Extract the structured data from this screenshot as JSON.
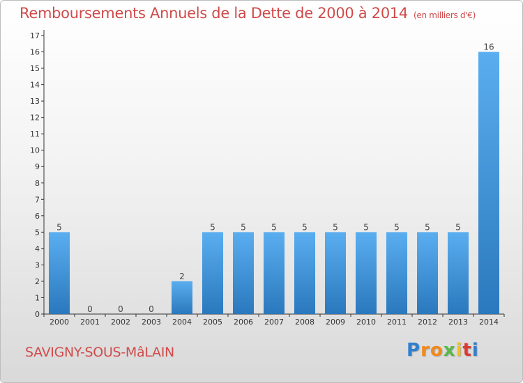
{
  "chart_data": {
    "type": "bar",
    "title": "Remboursements Annuels de la Dette de 2000 à 2014",
    "unit": "(en milliers d'€)",
    "categories": [
      "2000",
      "2001",
      "2002",
      "2003",
      "2004",
      "2005",
      "2006",
      "2007",
      "2008",
      "2009",
      "2010",
      "2011",
      "2012",
      "2013",
      "2014"
    ],
    "values": [
      5,
      0,
      0,
      0,
      2,
      5,
      5,
      5,
      5,
      5,
      5,
      5,
      5,
      5,
      16
    ],
    "data_labels": [
      "5",
      "0",
      "0",
      "0",
      "2",
      "5",
      "5",
      "5",
      "5",
      "5",
      "5",
      "5",
      "5",
      "5",
      "16"
    ],
    "y_ticks": [
      "0",
      "1",
      "2",
      "3",
      "4",
      "5",
      "6",
      "7",
      "8",
      "9",
      "10",
      "11",
      "12",
      "13",
      "14",
      "15",
      "16",
      "17"
    ],
    "ylim": [
      0,
      17
    ],
    "grid": false,
    "bar_color": "#3a8fd6"
  },
  "footer": {
    "commune": "SAVIGNY-SOUS-MâLAIN",
    "brand_letters": [
      "P",
      "r",
      "o",
      "x",
      "i",
      "t",
      "i"
    ],
    "brand_colors": [
      "#2f7fd0",
      "#f08a1c",
      "#f08a1c",
      "#59b848",
      "#f3c21a",
      "#d93a34",
      "#2f7fd0"
    ]
  }
}
